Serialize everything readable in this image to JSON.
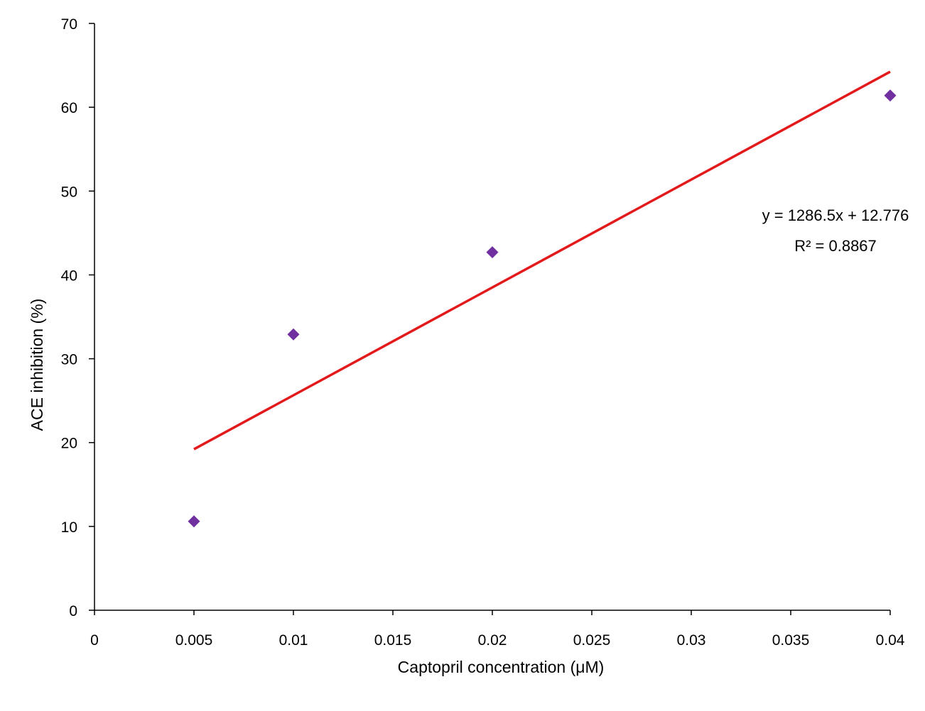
{
  "chart_data": {
    "type": "scatter",
    "title": "",
    "xlabel": "Captopril concentration (μM)",
    "ylabel": "ACE inhibition (%)",
    "xlim": [
      0,
      0.04
    ],
    "ylim": [
      0,
      70
    ],
    "x_ticks": [
      "0",
      "0.005",
      "0.01",
      "0.015",
      "0.02",
      "0.025",
      "0.03",
      "0.035",
      "0.04"
    ],
    "y_ticks": [
      "0",
      "10",
      "20",
      "30",
      "40",
      "50",
      "60",
      "70"
    ],
    "grid": false,
    "legend": "none",
    "series": [
      {
        "marker": "diamond",
        "color": "#7030A0",
        "x": [
          0.005,
          0.01,
          0.02,
          0.04
        ],
        "y": [
          10.6,
          32.9,
          42.7,
          61.4
        ]
      }
    ],
    "trendline": {
      "type": "linear",
      "color": "#E31A1C",
      "slope": 1286.5,
      "intercept": 12.776,
      "x_range": [
        0.005,
        0.04
      ],
      "equation_label": "y = 1286.5x + 12.776",
      "r2_label": "R² = 0.8867"
    }
  }
}
